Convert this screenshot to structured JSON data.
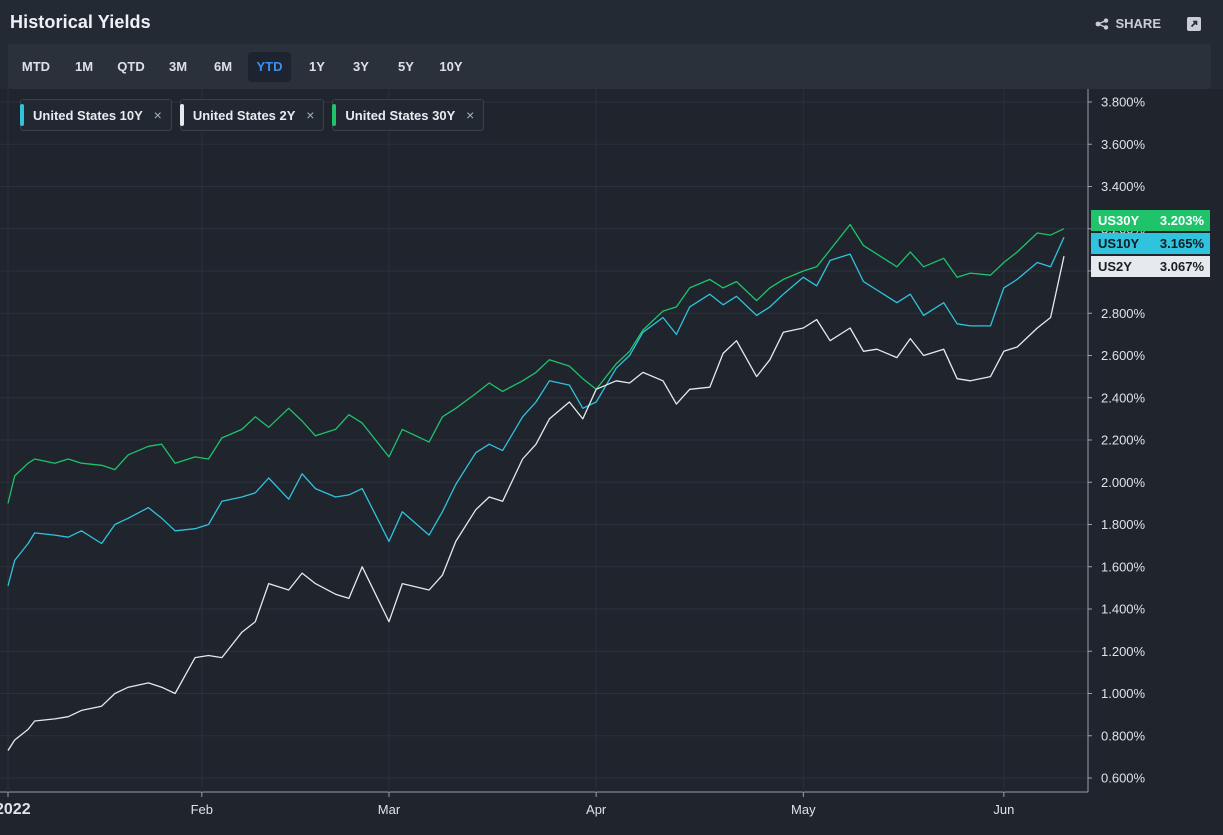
{
  "header": {
    "title": "Historical Yields",
    "share_label": "SHARE"
  },
  "toolbar": {
    "periods": [
      "MTD",
      "1M",
      "QTD",
      "3M",
      "6M",
      "YTD",
      "1Y",
      "3Y",
      "5Y",
      "10Y"
    ],
    "active": "YTD"
  },
  "legend": [
    {
      "label": "United States 10Y",
      "color": "#2fc3dd",
      "close": "×"
    },
    {
      "label": "United States 2Y",
      "color": "#e6e9ee",
      "close": "×"
    },
    {
      "label": "United States 30Y",
      "color": "#1ec36a",
      "close": "×"
    }
  ],
  "tags": [
    {
      "name": "US30Y",
      "value": "3.203%",
      "bg": "#1ec36a",
      "fg": "#ffffff"
    },
    {
      "name": "US10Y",
      "value": "3.165%",
      "bg": "#2fc3dd",
      "fg": "#0d1b22"
    },
    {
      "name": "US2Y",
      "value": "3.067%",
      "bg": "#e6e9ee",
      "fg": "#1a1f27"
    }
  ],
  "chart_data": {
    "type": "line",
    "x_ticks": [
      "2022",
      "Feb",
      "Mar",
      "Apr",
      "May",
      "Jun"
    ],
    "x_tick_dates": [
      "2022-01-03",
      "2022-02-01",
      "2022-03-01",
      "2022-04-01",
      "2022-05-02",
      "2022-06-01"
    ],
    "x_range": [
      "2022-01-03",
      "2022-06-10"
    ],
    "y_ticks": [
      "0.600%",
      "0.800%",
      "1.000%",
      "1.200%",
      "1.400%",
      "1.600%",
      "1.800%",
      "2.000%",
      "2.200%",
      "2.400%",
      "2.600%",
      "2.800%",
      "3.000%",
      "3.200%",
      "3.400%",
      "3.600%",
      "3.800%"
    ],
    "ylim": [
      0.55,
      3.85
    ],
    "grid": true,
    "legend_position": "top-left",
    "series": [
      {
        "name": "United States 30Y",
        "color": "#1ec36a",
        "points": [
          [
            "2022-01-03",
            1.9
          ],
          [
            "2022-01-04",
            2.03
          ],
          [
            "2022-01-06",
            2.09
          ],
          [
            "2022-01-07",
            2.11
          ],
          [
            "2022-01-10",
            2.09
          ],
          [
            "2022-01-12",
            2.11
          ],
          [
            "2022-01-14",
            2.09
          ],
          [
            "2022-01-17",
            2.08
          ],
          [
            "2022-01-19",
            2.06
          ],
          [
            "2022-01-21",
            2.13
          ],
          [
            "2022-01-24",
            2.17
          ],
          [
            "2022-01-26",
            2.18
          ],
          [
            "2022-01-28",
            2.09
          ],
          [
            "2022-01-31",
            2.12
          ],
          [
            "2022-02-02",
            2.11
          ],
          [
            "2022-02-04",
            2.21
          ],
          [
            "2022-02-07",
            2.25
          ],
          [
            "2022-02-09",
            2.31
          ],
          [
            "2022-02-11",
            2.26
          ],
          [
            "2022-02-14",
            2.35
          ],
          [
            "2022-02-16",
            2.29
          ],
          [
            "2022-02-18",
            2.22
          ],
          [
            "2022-02-21",
            2.25
          ],
          [
            "2022-02-23",
            2.32
          ],
          [
            "2022-02-25",
            2.28
          ],
          [
            "2022-03-01",
            2.12
          ],
          [
            "2022-03-03",
            2.25
          ],
          [
            "2022-03-07",
            2.19
          ],
          [
            "2022-03-09",
            2.31
          ],
          [
            "2022-03-11",
            2.35
          ],
          [
            "2022-03-14",
            2.42
          ],
          [
            "2022-03-16",
            2.47
          ],
          [
            "2022-03-18",
            2.43
          ],
          [
            "2022-03-21",
            2.48
          ],
          [
            "2022-03-23",
            2.52
          ],
          [
            "2022-03-25",
            2.58
          ],
          [
            "2022-03-28",
            2.55
          ],
          [
            "2022-03-30",
            2.49
          ],
          [
            "2022-04-01",
            2.44
          ],
          [
            "2022-04-04",
            2.56
          ],
          [
            "2022-04-06",
            2.62
          ],
          [
            "2022-04-08",
            2.72
          ],
          [
            "2022-04-11",
            2.81
          ],
          [
            "2022-04-13",
            2.83
          ],
          [
            "2022-04-15",
            2.92
          ],
          [
            "2022-04-18",
            2.96
          ],
          [
            "2022-04-20",
            2.92
          ],
          [
            "2022-04-22",
            2.95
          ],
          [
            "2022-04-25",
            2.86
          ],
          [
            "2022-04-27",
            2.92
          ],
          [
            "2022-04-29",
            2.96
          ],
          [
            "2022-05-02",
            3.0
          ],
          [
            "2022-05-04",
            3.02
          ],
          [
            "2022-05-06",
            3.1
          ],
          [
            "2022-05-09",
            3.22
          ],
          [
            "2022-05-11",
            3.12
          ],
          [
            "2022-05-13",
            3.08
          ],
          [
            "2022-05-16",
            3.02
          ],
          [
            "2022-05-18",
            3.09
          ],
          [
            "2022-05-20",
            3.02
          ],
          [
            "2022-05-23",
            3.06
          ],
          [
            "2022-05-25",
            2.97
          ],
          [
            "2022-05-27",
            2.99
          ],
          [
            "2022-05-30",
            2.98
          ],
          [
            "2022-06-01",
            3.04
          ],
          [
            "2022-06-03",
            3.09
          ],
          [
            "2022-06-06",
            3.18
          ],
          [
            "2022-06-08",
            3.17
          ],
          [
            "2022-06-10",
            3.2
          ]
        ]
      },
      {
        "name": "United States 10Y",
        "color": "#2fc3dd",
        "points": [
          [
            "2022-01-03",
            1.51
          ],
          [
            "2022-01-04",
            1.63
          ],
          [
            "2022-01-06",
            1.71
          ],
          [
            "2022-01-07",
            1.76
          ],
          [
            "2022-01-10",
            1.75
          ],
          [
            "2022-01-12",
            1.74
          ],
          [
            "2022-01-14",
            1.77
          ],
          [
            "2022-01-17",
            1.71
          ],
          [
            "2022-01-19",
            1.8
          ],
          [
            "2022-01-21",
            1.83
          ],
          [
            "2022-01-24",
            1.88
          ],
          [
            "2022-01-26",
            1.83
          ],
          [
            "2022-01-28",
            1.77
          ],
          [
            "2022-01-31",
            1.78
          ],
          [
            "2022-02-02",
            1.8
          ],
          [
            "2022-02-04",
            1.91
          ],
          [
            "2022-02-07",
            1.93
          ],
          [
            "2022-02-09",
            1.95
          ],
          [
            "2022-02-11",
            2.02
          ],
          [
            "2022-02-14",
            1.92
          ],
          [
            "2022-02-16",
            2.04
          ],
          [
            "2022-02-18",
            1.97
          ],
          [
            "2022-02-21",
            1.93
          ],
          [
            "2022-02-23",
            1.94
          ],
          [
            "2022-02-25",
            1.97
          ],
          [
            "2022-03-01",
            1.72
          ],
          [
            "2022-03-03",
            1.86
          ],
          [
            "2022-03-07",
            1.75
          ],
          [
            "2022-03-09",
            1.86
          ],
          [
            "2022-03-11",
            1.99
          ],
          [
            "2022-03-14",
            2.14
          ],
          [
            "2022-03-16",
            2.18
          ],
          [
            "2022-03-18",
            2.15
          ],
          [
            "2022-03-21",
            2.31
          ],
          [
            "2022-03-23",
            2.38
          ],
          [
            "2022-03-25",
            2.48
          ],
          [
            "2022-03-28",
            2.46
          ],
          [
            "2022-03-30",
            2.35
          ],
          [
            "2022-04-01",
            2.38
          ],
          [
            "2022-04-04",
            2.54
          ],
          [
            "2022-04-06",
            2.6
          ],
          [
            "2022-04-08",
            2.71
          ],
          [
            "2022-04-11",
            2.78
          ],
          [
            "2022-04-13",
            2.7
          ],
          [
            "2022-04-15",
            2.83
          ],
          [
            "2022-04-18",
            2.89
          ],
          [
            "2022-04-20",
            2.84
          ],
          [
            "2022-04-22",
            2.88
          ],
          [
            "2022-04-25",
            2.79
          ],
          [
            "2022-04-27",
            2.83
          ],
          [
            "2022-04-29",
            2.89
          ],
          [
            "2022-05-02",
            2.97
          ],
          [
            "2022-05-04",
            2.93
          ],
          [
            "2022-05-06",
            3.05
          ],
          [
            "2022-05-09",
            3.08
          ],
          [
            "2022-05-11",
            2.95
          ],
          [
            "2022-05-13",
            2.91
          ],
          [
            "2022-05-16",
            2.85
          ],
          [
            "2022-05-18",
            2.89
          ],
          [
            "2022-05-20",
            2.79
          ],
          [
            "2022-05-23",
            2.85
          ],
          [
            "2022-05-25",
            2.75
          ],
          [
            "2022-05-27",
            2.74
          ],
          [
            "2022-05-30",
            2.74
          ],
          [
            "2022-06-01",
            2.92
          ],
          [
            "2022-06-03",
            2.96
          ],
          [
            "2022-06-06",
            3.04
          ],
          [
            "2022-06-08",
            3.02
          ],
          [
            "2022-06-10",
            3.16
          ]
        ]
      },
      {
        "name": "United States 2Y",
        "color": "#e6e9ee",
        "points": [
          [
            "2022-01-03",
            0.73
          ],
          [
            "2022-01-04",
            0.78
          ],
          [
            "2022-01-06",
            0.83
          ],
          [
            "2022-01-07",
            0.87
          ],
          [
            "2022-01-10",
            0.88
          ],
          [
            "2022-01-12",
            0.89
          ],
          [
            "2022-01-14",
            0.92
          ],
          [
            "2022-01-17",
            0.94
          ],
          [
            "2022-01-19",
            1.0
          ],
          [
            "2022-01-21",
            1.03
          ],
          [
            "2022-01-24",
            1.05
          ],
          [
            "2022-01-26",
            1.03
          ],
          [
            "2022-01-28",
            1.0
          ],
          [
            "2022-01-31",
            1.17
          ],
          [
            "2022-02-02",
            1.18
          ],
          [
            "2022-02-04",
            1.17
          ],
          [
            "2022-02-07",
            1.29
          ],
          [
            "2022-02-09",
            1.34
          ],
          [
            "2022-02-11",
            1.52
          ],
          [
            "2022-02-14",
            1.49
          ],
          [
            "2022-02-16",
            1.57
          ],
          [
            "2022-02-18",
            1.52
          ],
          [
            "2022-02-21",
            1.47
          ],
          [
            "2022-02-23",
            1.45
          ],
          [
            "2022-02-25",
            1.6
          ],
          [
            "2022-03-01",
            1.34
          ],
          [
            "2022-03-03",
            1.52
          ],
          [
            "2022-03-07",
            1.49
          ],
          [
            "2022-03-09",
            1.56
          ],
          [
            "2022-03-11",
            1.72
          ],
          [
            "2022-03-14",
            1.87
          ],
          [
            "2022-03-16",
            1.93
          ],
          [
            "2022-03-18",
            1.91
          ],
          [
            "2022-03-21",
            2.11
          ],
          [
            "2022-03-23",
            2.18
          ],
          [
            "2022-03-25",
            2.3
          ],
          [
            "2022-03-28",
            2.38
          ],
          [
            "2022-03-30",
            2.3
          ],
          [
            "2022-04-01",
            2.44
          ],
          [
            "2022-04-04",
            2.48
          ],
          [
            "2022-04-06",
            2.47
          ],
          [
            "2022-04-08",
            2.52
          ],
          [
            "2022-04-11",
            2.48
          ],
          [
            "2022-04-13",
            2.37
          ],
          [
            "2022-04-15",
            2.44
          ],
          [
            "2022-04-18",
            2.45
          ],
          [
            "2022-04-20",
            2.61
          ],
          [
            "2022-04-22",
            2.67
          ],
          [
            "2022-04-25",
            2.5
          ],
          [
            "2022-04-27",
            2.58
          ],
          [
            "2022-04-29",
            2.71
          ],
          [
            "2022-05-02",
            2.73
          ],
          [
            "2022-05-04",
            2.77
          ],
          [
            "2022-05-06",
            2.67
          ],
          [
            "2022-05-09",
            2.73
          ],
          [
            "2022-05-11",
            2.62
          ],
          [
            "2022-05-13",
            2.63
          ],
          [
            "2022-05-16",
            2.59
          ],
          [
            "2022-05-18",
            2.68
          ],
          [
            "2022-05-20",
            2.6
          ],
          [
            "2022-05-23",
            2.63
          ],
          [
            "2022-05-25",
            2.49
          ],
          [
            "2022-05-27",
            2.48
          ],
          [
            "2022-05-30",
            2.5
          ],
          [
            "2022-06-01",
            2.62
          ],
          [
            "2022-06-03",
            2.64
          ],
          [
            "2022-06-06",
            2.73
          ],
          [
            "2022-06-08",
            2.78
          ],
          [
            "2022-06-10",
            3.07
          ]
        ]
      }
    ]
  }
}
